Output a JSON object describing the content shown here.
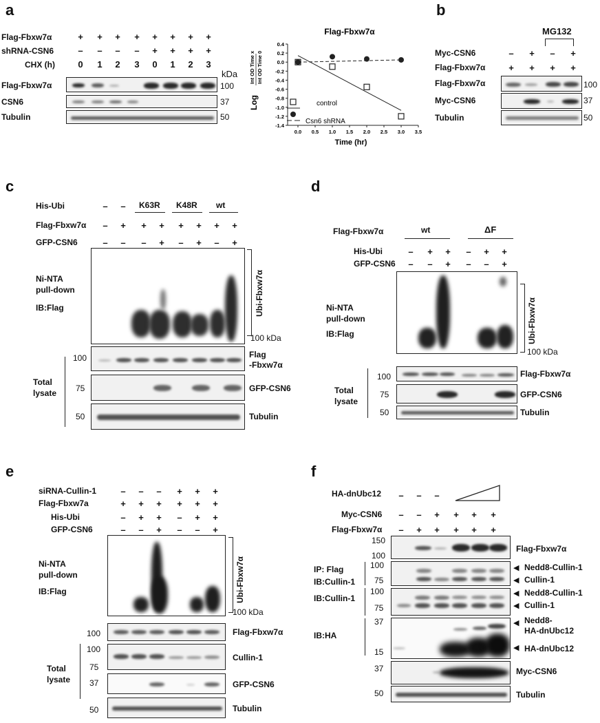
{
  "panels": {
    "a": {
      "letter": "a",
      "rows": {
        "flag": "Flag-Fbxw7α",
        "shrna": "shRNA-CSN6",
        "chx": "CHX (h)"
      },
      "flag_signs": [
        "+",
        "+",
        "+",
        "+",
        "+",
        "+",
        "+",
        "+"
      ],
      "shrna_signs": [
        "–",
        "–",
        "–",
        "–",
        "+",
        "+",
        "+",
        "+"
      ],
      "chx_vals": [
        "0",
        "1",
        "2",
        "3",
        "0",
        "1",
        "2",
        "3"
      ],
      "kda": "kDa",
      "blots": [
        "Flag-Fbxw7α",
        "CSN6",
        "Tubulin"
      ],
      "mw": [
        "100",
        "37",
        "50"
      ]
    },
    "chart": {
      "title": "Flag-Fbxw7α",
      "xlabel": "Time (hr)",
      "ylabel_log": "Log",
      "ylabel_num": "Int OD Time x",
      "ylabel_den": "Int OD Time 0",
      "legend_control": "control",
      "legend_shrna": "Csn6 shRNA"
    },
    "b": {
      "letter": "b",
      "mg132": "MG132",
      "rows": {
        "myc": "Myc-CSN6",
        "flag": "Flag-Fbxw7α"
      },
      "myc_signs": [
        "–",
        "+",
        "–",
        "+"
      ],
      "flag_signs": [
        "+",
        "+",
        "+",
        "+"
      ],
      "blots": [
        "Flag-Fbxw7α",
        "Myc-CSN6",
        "Tubulin"
      ],
      "mw": [
        "100",
        "37",
        "50"
      ]
    },
    "c": {
      "letter": "c",
      "groups": [
        "K63R",
        "K48R",
        "wt"
      ],
      "rows": {
        "his": "His-Ubi",
        "flag": "Flag-Fbxw7α",
        "gfp": "GFP-CSN6"
      },
      "his_signs": [
        "–",
        "–"
      ],
      "flag_signs": [
        "–",
        "+",
        "+",
        "+",
        "+",
        "+",
        "+",
        "+"
      ],
      "gfp_signs": [
        "–",
        "–",
        "–",
        "+",
        "–",
        "+",
        "–",
        "+"
      ],
      "ni1": "Ni-NTA",
      "ni2": "pull-down",
      "ib": "IB:Flag",
      "ubi": "Ubi-Fbxw7α",
      "mw_top": "100 kDa",
      "total1": "Total",
      "total2": "lysate",
      "blots": [
        "Flag\n-Fbxw7α",
        "GFP-CSN6",
        "Tubulin"
      ],
      "blot_flag_l1": "Flag",
      "blot_flag_l2": "-Fbxw7α",
      "mw": [
        "100",
        "75",
        "50"
      ]
    },
    "d": {
      "letter": "d",
      "groups": [
        "wt",
        "ΔF"
      ],
      "rows": {
        "flag": "Flag-Fbxw7α",
        "his": "His-Ubi",
        "gfp": "GFP-CSN6"
      },
      "his_signs": [
        "–",
        "+",
        "+",
        "–",
        "+",
        "+"
      ],
      "gfp_signs": [
        "–",
        "–",
        "+",
        "–",
        "–",
        "+"
      ],
      "ni1": "Ni-NTA",
      "ni2": "pull-down",
      "ib": "IB:Flag",
      "ubi": "Ubi-Fbxw7α",
      "mw_top": "100 kDa",
      "total1": "Total",
      "total2": "lysate",
      "blots": [
        "Flag-Fbxw7α",
        "GFP-CSN6",
        "Tubulin"
      ],
      "mw": [
        "100",
        "75",
        "50"
      ]
    },
    "e": {
      "letter": "e",
      "rows": {
        "si": "siRNA-Cullin-1",
        "flag": "Flag-Fbxw7a",
        "his": "His-Ubi",
        "gfp": "GFP-CSN6"
      },
      "si_signs": [
        "–",
        "–",
        "–",
        "+",
        "+",
        "+"
      ],
      "flag_signs": [
        "+",
        "+",
        "+",
        "+",
        "+",
        "+"
      ],
      "his_signs": [
        "–",
        "+",
        "+",
        "–",
        "+",
        "+"
      ],
      "gfp_signs": [
        "–",
        "–",
        "+",
        "–",
        "–",
        "+"
      ],
      "ni1": "Ni-NTA",
      "ni2": "pull-down",
      "ib": "IB:Flag",
      "ubi": "Ubi-Fbxw7α",
      "mw_top": "100 kDa",
      "total1": "Total",
      "total2": "lysate",
      "blots": [
        "Flag-Fbxw7α",
        "Cullin-1",
        "GFP-CSN6",
        "Tubulin"
      ],
      "mw": [
        "100",
        "100",
        "75",
        "37",
        "50"
      ]
    },
    "f": {
      "letter": "f",
      "rows": {
        "ha": "HA-dnUbc12",
        "myc": "Myc-CSN6",
        "flag": "Flag-Fbxw7α"
      },
      "ha_signs": [
        "–",
        "–",
        "–"
      ],
      "myc_signs": [
        "–",
        "–",
        "+",
        "+",
        "+",
        "+"
      ],
      "flag_signs": [
        "–",
        "+",
        "+",
        "+",
        "+",
        "+"
      ],
      "ip": "IP: Flag",
      "ib_cul": "IB:Cullin-1",
      "ib_cul2": "IB:Cullin-1",
      "ib_ha": "IB:HA",
      "blot_flag": "Flag-Fbxw7α",
      "nedd8_cullin": "Nedd8-Cullin-1",
      "cullin": "Cullin-1",
      "nedd8_cullin2": "Nedd8-Cullin-1",
      "cullin2": "Cullin-1",
      "nedd8_ha1": "Nedd8-",
      "nedd8_ha2": "HA-dnUbc12",
      "ha_dn": "HA-dnUbc12",
      "myc_csn6": "Myc-CSN6",
      "tubulin": "Tubulin",
      "mw": [
        "150",
        "100",
        "100",
        "75",
        "100",
        "75",
        "37",
        "15",
        "37",
        "50"
      ]
    }
  },
  "chart_data": {
    "type": "scatter",
    "title": "Flag-Fbxw7α",
    "xlabel": "Time (hr)",
    "ylabel": "Log(Int OD Time x / Int OD Time 0)",
    "xlim": [
      -0.3,
      3.5
    ],
    "ylim": [
      -1.4,
      0.4
    ],
    "xticks": [
      0.0,
      0.5,
      1.0,
      1.5,
      2.0,
      2.5,
      3.0,
      3.5
    ],
    "yticks": [
      0.4,
      0.2,
      0.0,
      -0.2,
      -0.4,
      -0.6,
      -0.8,
      -1.0,
      -1.2,
      -1.4
    ],
    "series": [
      {
        "name": "control",
        "marker": "open-square",
        "x": [
          0,
          1,
          2,
          3
        ],
        "y": [
          0.0,
          -0.1,
          -0.55,
          -1.2
        ]
      },
      {
        "name": "Csn6 shRNA",
        "marker": "filled-circle",
        "x": [
          0,
          1,
          2,
          3
        ],
        "y": [
          0.0,
          0.12,
          0.07,
          0.05
        ]
      }
    ],
    "legend": "bottom-left"
  }
}
